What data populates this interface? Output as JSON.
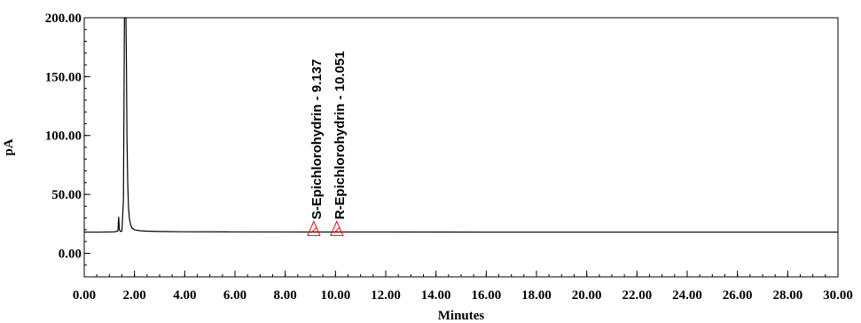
{
  "chart_data": {
    "type": "line",
    "title": "",
    "xlabel": "Minutes",
    "ylabel": "pA",
    "xlim": [
      0,
      30
    ],
    "ylim": [
      -20,
      200
    ],
    "x_ticks": [
      0,
      2,
      4,
      6,
      8,
      10,
      12,
      14,
      16,
      18,
      20,
      22,
      24,
      26,
      28,
      30
    ],
    "x_tick_labels": [
      "0.00",
      "2.00",
      "4.00",
      "6.00",
      "8.00",
      "10.00",
      "12.00",
      "14.00",
      "16.00",
      "18.00",
      "20.00",
      "22.00",
      "24.00",
      "26.00",
      "28.00",
      "30.00"
    ],
    "y_ticks": [
      0,
      50,
      100,
      150,
      200
    ],
    "y_tick_labels": [
      "0.00",
      "50.00",
      "100.00",
      "150.00",
      "200.00"
    ],
    "grid": false,
    "line_color": "#000000",
    "marker_color": "#ff0000",
    "series": [
      {
        "x": [
          0.0,
          0.6,
          1.2,
          1.34,
          1.37,
          1.4,
          1.44,
          1.5,
          1.56,
          1.58,
          1.6,
          1.63,
          1.66,
          1.68,
          1.7,
          1.73,
          1.76,
          1.8,
          1.85,
          1.9,
          2.0,
          2.2,
          2.5,
          3.0,
          4.0,
          6.0,
          9.137,
          10.051,
          12.0,
          16.0,
          20.0,
          24.0,
          28.0,
          30.0
        ],
        "y": [
          18.0,
          18.0,
          18.2,
          19.0,
          31.0,
          20.0,
          18.5,
          19.0,
          45.0,
          120.0,
          200.0,
          200.0,
          200.0,
          160.0,
          100.0,
          60.0,
          40.0,
          29.0,
          24.0,
          21.5,
          20.0,
          19.2,
          18.8,
          18.5,
          18.3,
          18.2,
          18.1,
          18.1,
          18.1,
          18.0,
          18.0,
          18.0,
          18.0,
          18.0
        ]
      }
    ],
    "peaks": [
      {
        "name": "S-Epichlorohydrin",
        "time": 9.137,
        "label": "S-Epichlorohydrin - 9.137"
      },
      {
        "name": "R-Epichlorohydrin",
        "time": 10.051,
        "label": "R-Epichlorohydrin - 10.051"
      }
    ]
  }
}
